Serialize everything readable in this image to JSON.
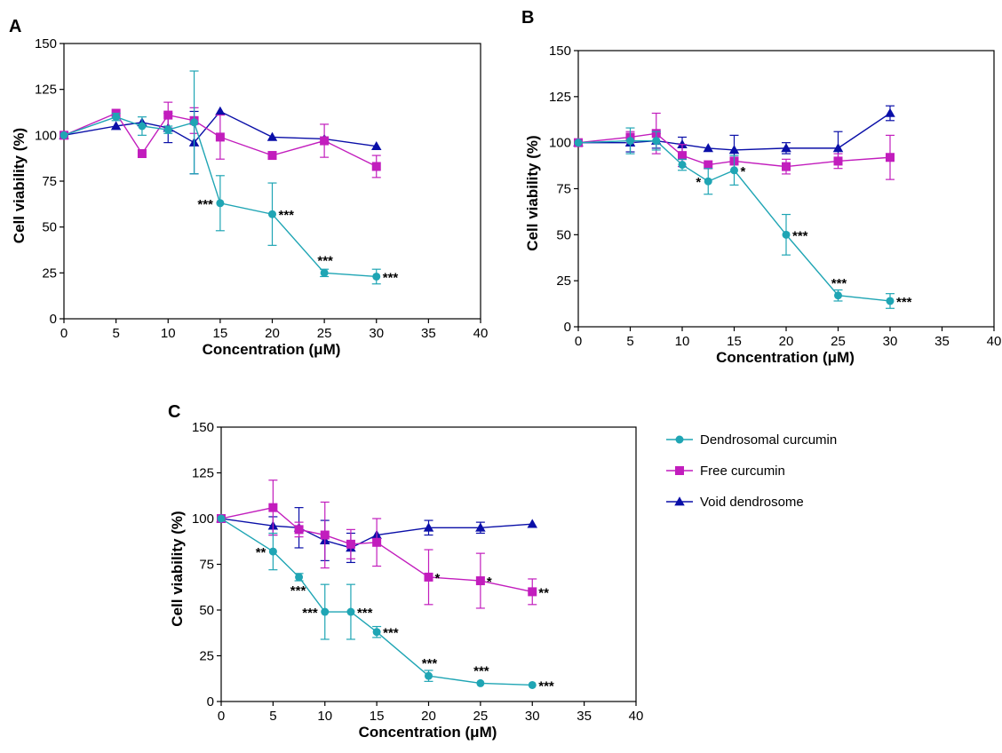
{
  "colors": {
    "dendrosomal": "#1fa5b4",
    "free": "#c21dbd",
    "void": "#0a0fa8"
  },
  "legend": [
    {
      "key": "dendrosomal",
      "label": "Dendrosomal curcumin",
      "marker": "circle"
    },
    {
      "key": "free",
      "label": "Free curcumin",
      "marker": "square"
    },
    {
      "key": "void",
      "label": "Void dendrosome",
      "marker": "triangle"
    }
  ],
  "chart_data": [
    {
      "panel": "A",
      "type": "line",
      "xlabel": "Concentration (μM)",
      "ylabel": "Cell viability (%)",
      "xlim": [
        0,
        40
      ],
      "ylim": [
        0,
        150
      ],
      "xticks": [
        0,
        5,
        10,
        15,
        20,
        25,
        30,
        35,
        40
      ],
      "yticks": [
        0,
        25,
        50,
        75,
        100,
        125,
        150
      ],
      "grid": false,
      "series": [
        {
          "key": "dendrosomal",
          "points": [
            {
              "x": 0,
              "y": 100,
              "err": 0
            },
            {
              "x": 5,
              "y": 110,
              "err": 2
            },
            {
              "x": 7.5,
              "y": 105,
              "err": 5
            },
            {
              "x": 10,
              "y": 103,
              "err": 2
            },
            {
              "x": 12.5,
              "y": 107,
              "err": 28
            },
            {
              "x": 15,
              "y": 63,
              "err": 15,
              "sig": "***",
              "sig_pos": "left"
            },
            {
              "x": 20,
              "y": 57,
              "err": 17,
              "sig": "***",
              "sig_pos": "right"
            },
            {
              "x": 25,
              "y": 25,
              "err": 2,
              "sig": "***",
              "sig_pos": "above"
            },
            {
              "x": 30,
              "y": 23,
              "err": 4,
              "sig": "***",
              "sig_pos": "right"
            }
          ]
        },
        {
          "key": "free",
          "points": [
            {
              "x": 0,
              "y": 100,
              "err": 0
            },
            {
              "x": 5,
              "y": 112,
              "err": 0
            },
            {
              "x": 7.5,
              "y": 90,
              "err": 0
            },
            {
              "x": 10,
              "y": 111,
              "err": 7
            },
            {
              "x": 12.5,
              "y": 108,
              "err": 7
            },
            {
              "x": 15,
              "y": 99,
              "err": 12
            },
            {
              "x": 20,
              "y": 89,
              "err": 2
            },
            {
              "x": 25,
              "y": 97,
              "err": 9
            },
            {
              "x": 30,
              "y": 83,
              "err": 6
            }
          ]
        },
        {
          "key": "void",
          "points": [
            {
              "x": 0,
              "y": 100,
              "err": 0
            },
            {
              "x": 5,
              "y": 105,
              "err": 0
            },
            {
              "x": 7.5,
              "y": 107,
              "err": 0
            },
            {
              "x": 10,
              "y": 104,
              "err": 8
            },
            {
              "x": 12.5,
              "y": 96,
              "err": 17
            },
            {
              "x": 15,
              "y": 113,
              "err": 0
            },
            {
              "x": 20,
              "y": 99,
              "err": 0
            },
            {
              "x": 25,
              "y": 98,
              "err": 0
            },
            {
              "x": 30,
              "y": 94,
              "err": 0
            }
          ]
        }
      ]
    },
    {
      "panel": "B",
      "type": "line",
      "xlabel": "Concentration (μM)",
      "ylabel": "Cell viability (%)",
      "xlim": [
        0,
        40
      ],
      "ylim": [
        0,
        150
      ],
      "xticks": [
        0,
        5,
        10,
        15,
        20,
        25,
        30,
        35,
        40
      ],
      "yticks": [
        0,
        25,
        50,
        75,
        100,
        125,
        150
      ],
      "grid": false,
      "series": [
        {
          "key": "dendrosomal",
          "points": [
            {
              "x": 0,
              "y": 100,
              "err": 0
            },
            {
              "x": 5,
              "y": 101,
              "err": 7
            },
            {
              "x": 7.5,
              "y": 101,
              "err": 5
            },
            {
              "x": 10,
              "y": 88,
              "err": 3
            },
            {
              "x": 12.5,
              "y": 79,
              "err": 7,
              "sig": "*",
              "sig_pos": "left"
            },
            {
              "x": 15,
              "y": 85,
              "err": 8,
              "sig": "*",
              "sig_pos": "right"
            },
            {
              "x": 20,
              "y": 50,
              "err": 11,
              "sig": "***",
              "sig_pos": "right"
            },
            {
              "x": 25,
              "y": 17,
              "err": 3,
              "sig": "***",
              "sig_pos": "above"
            },
            {
              "x": 30,
              "y": 14,
              "err": 4,
              "sig": "***",
              "sig_pos": "right"
            }
          ]
        },
        {
          "key": "free",
          "points": [
            {
              "x": 0,
              "y": 100,
              "err": 0
            },
            {
              "x": 5,
              "y": 103,
              "err": 3
            },
            {
              "x": 7.5,
              "y": 105,
              "err": 11
            },
            {
              "x": 10,
              "y": 93,
              "err": 6
            },
            {
              "x": 12.5,
              "y": 88,
              "err": 0
            },
            {
              "x": 15,
              "y": 90,
              "err": 0
            },
            {
              "x": 20,
              "y": 87,
              "err": 4
            },
            {
              "x": 25,
              "y": 90,
              "err": 4
            },
            {
              "x": 30,
              "y": 92,
              "err": 12
            }
          ]
        },
        {
          "key": "void",
          "points": [
            {
              "x": 0,
              "y": 100,
              "err": 0
            },
            {
              "x": 5,
              "y": 100,
              "err": 5
            },
            {
              "x": 7.5,
              "y": 101,
              "err": 4
            },
            {
              "x": 10,
              "y": 99,
              "err": 4
            },
            {
              "x": 12.5,
              "y": 97,
              "err": 0
            },
            {
              "x": 15,
              "y": 96,
              "err": 8
            },
            {
              "x": 20,
              "y": 97,
              "err": 3
            },
            {
              "x": 25,
              "y": 97,
              "err": 9
            },
            {
              "x": 30,
              "y": 116,
              "err": 4
            }
          ]
        }
      ]
    },
    {
      "panel": "C",
      "type": "line",
      "xlabel": "Concentration (μM)",
      "ylabel": "Cell viability (%)",
      "xlim": [
        0,
        40
      ],
      "ylim": [
        0,
        150
      ],
      "xticks": [
        0,
        5,
        10,
        15,
        20,
        25,
        30,
        35,
        40
      ],
      "yticks": [
        0,
        25,
        50,
        75,
        100,
        125,
        150
      ],
      "grid": false,
      "legend_position": "right",
      "series": [
        {
          "key": "dendrosomal",
          "points": [
            {
              "x": 0,
              "y": 100,
              "err": 0
            },
            {
              "x": 5,
              "y": 82,
              "err": 10,
              "sig": "**",
              "sig_pos": "left"
            },
            {
              "x": 7.5,
              "y": 68,
              "err": 2,
              "sig": "***",
              "sig_pos": "below"
            },
            {
              "x": 10,
              "y": 49,
              "err": 15,
              "sig": "***",
              "sig_pos": "left"
            },
            {
              "x": 12.5,
              "y": 49,
              "err": 15,
              "sig": "***",
              "sig_pos": "right"
            },
            {
              "x": 15,
              "y": 38,
              "err": 3,
              "sig": "***",
              "sig_pos": "right"
            },
            {
              "x": 20,
              "y": 14,
              "err": 3,
              "sig": "***",
              "sig_pos": "above"
            },
            {
              "x": 25,
              "y": 10,
              "err": 0,
              "sig": "***",
              "sig_pos": "above"
            },
            {
              "x": 30,
              "y": 9,
              "err": 0,
              "sig": "***",
              "sig_pos": "right"
            }
          ]
        },
        {
          "key": "free",
          "points": [
            {
              "x": 0,
              "y": 100,
              "err": 0
            },
            {
              "x": 5,
              "y": 106,
              "err": 15
            },
            {
              "x": 7.5,
              "y": 94,
              "err": 4
            },
            {
              "x": 10,
              "y": 91,
              "err": 18
            },
            {
              "x": 12.5,
              "y": 86,
              "err": 8
            },
            {
              "x": 15,
              "y": 87,
              "err": 13
            },
            {
              "x": 20,
              "y": 68,
              "err": 15,
              "sig": "*",
              "sig_pos": "right"
            },
            {
              "x": 25,
              "y": 66,
              "err": 15,
              "sig": "*",
              "sig_pos": "right"
            },
            {
              "x": 30,
              "y": 60,
              "err": 7,
              "sig": "**",
              "sig_pos": "right"
            }
          ]
        },
        {
          "key": "void",
          "points": [
            {
              "x": 0,
              "y": 100,
              "err": 0
            },
            {
              "x": 5,
              "y": 96,
              "err": 5
            },
            {
              "x": 7.5,
              "y": 95,
              "err": 11
            },
            {
              "x": 10,
              "y": 88,
              "err": 11
            },
            {
              "x": 12.5,
              "y": 84,
              "err": 8
            },
            {
              "x": 15,
              "y": 91,
              "err": 0
            },
            {
              "x": 20,
              "y": 95,
              "err": 4
            },
            {
              "x": 25,
              "y": 95,
              "err": 3
            },
            {
              "x": 30,
              "y": 97,
              "err": 0
            }
          ]
        }
      ]
    }
  ]
}
